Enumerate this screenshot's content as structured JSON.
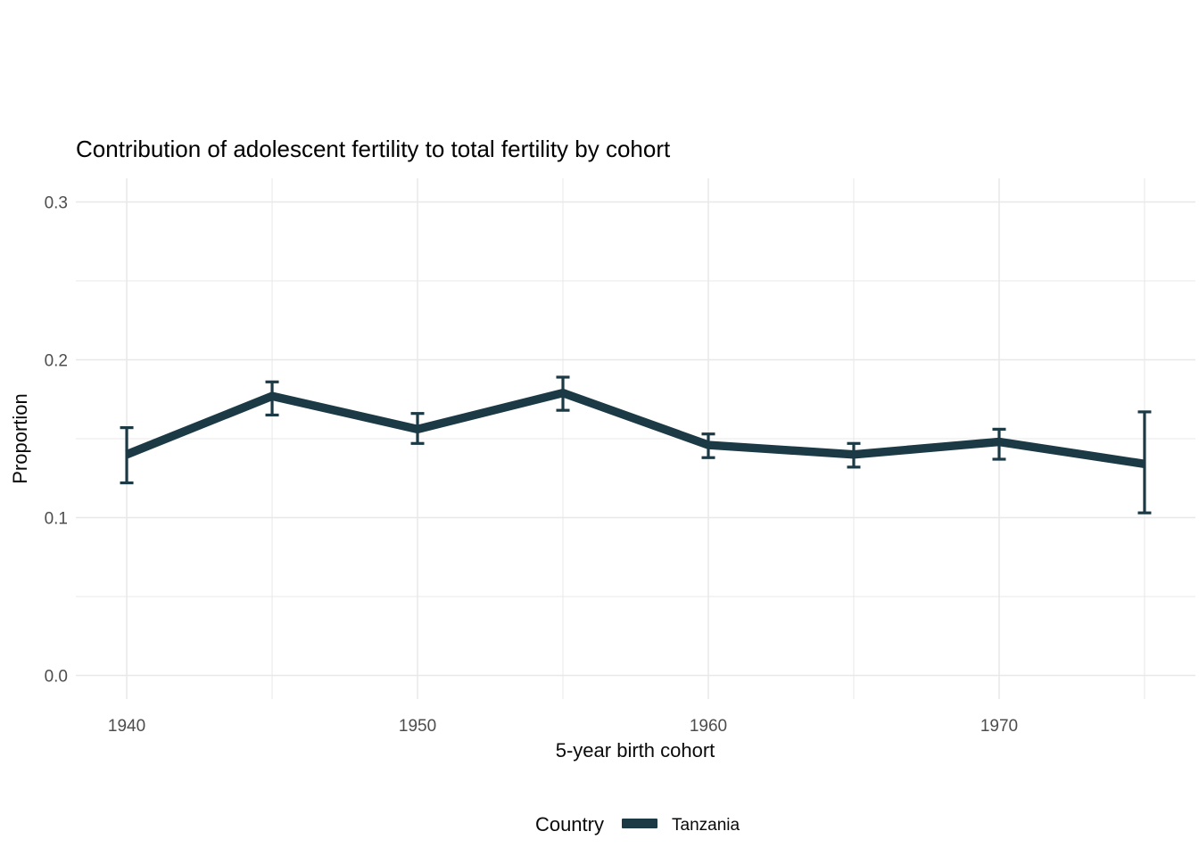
{
  "chart_data": {
    "type": "line",
    "title": "Contribution of adolescent fertility to total fertility by cohort",
    "xlabel": "5-year birth cohort",
    "ylabel": "Proportion",
    "x": [
      1940,
      1945,
      1950,
      1955,
      1960,
      1965,
      1970,
      1975
    ],
    "series": [
      {
        "name": "Tanzania",
        "color": "#1c3a45",
        "values": [
          0.14,
          0.177,
          0.156,
          0.179,
          0.146,
          0.14,
          0.148,
          0.134
        ],
        "ci_low": [
          0.122,
          0.165,
          0.147,
          0.168,
          0.138,
          0.132,
          0.137,
          0.103
        ],
        "ci_high": [
          0.157,
          0.186,
          0.166,
          0.189,
          0.153,
          0.147,
          0.156,
          0.167
        ]
      }
    ],
    "x_ticks": {
      "major": [
        1940,
        1950,
        1960,
        1970
      ],
      "labels": [
        "1940",
        "1950",
        "1960",
        "1970"
      ],
      "minor": [
        1945,
        1955,
        1965,
        1975
      ]
    },
    "y_ticks": {
      "major": [
        0,
        0.1,
        0.2,
        0.3
      ],
      "labels": [
        "0.0",
        "0.1",
        "0.2",
        "0.3"
      ],
      "minor": [
        0.05,
        0.15,
        0.25
      ]
    },
    "xlim": [
      1938.25,
      1976.75
    ],
    "ylim": [
      -0.015,
      0.315
    ],
    "grid": true,
    "legend": {
      "title": "Country",
      "position": "bottom",
      "entries": [
        {
          "label": "Tanzania",
          "color": "#1c3a45"
        }
      ]
    },
    "colors": {
      "gridline": "#e8e8e8",
      "tick_label": "#4d4d4d",
      "text": "#000000",
      "background": "#ffffff"
    }
  }
}
